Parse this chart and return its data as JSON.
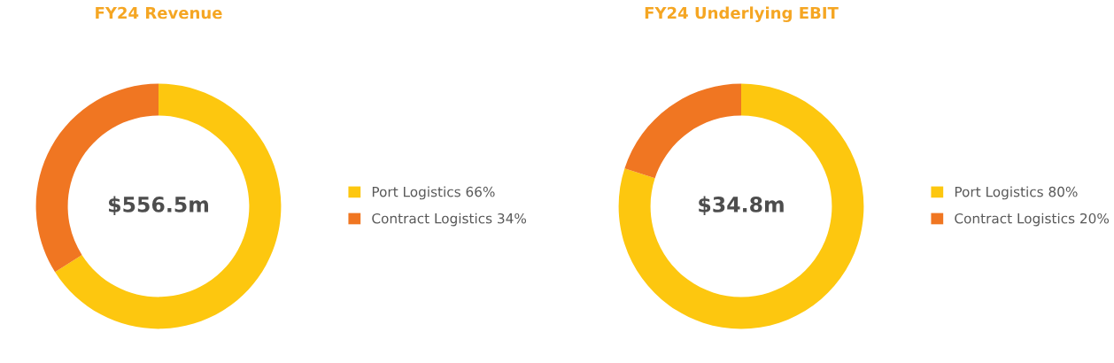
{
  "chart_data": [
    {
      "type": "donut",
      "title": "FY24 Revenue",
      "categories": [
        "Port Logistics 66%",
        "Contract Logistics 34%"
      ],
      "values": [
        66,
        34
      ],
      "colors": [
        "#fdc70f",
        "#f07622"
      ],
      "annotations": [
        "$556.5m"
      ],
      "legend": "right"
    },
    {
      "type": "donut",
      "title": "FY24 Underlying EBIT",
      "categories": [
        "Port Logistics 80%",
        "Contract Logistics 20%"
      ],
      "values": [
        80,
        20
      ],
      "colors": [
        "#fdc70f",
        "#f07622"
      ],
      "annotations": [
        "$34.8m"
      ],
      "legend": "right"
    }
  ]
}
